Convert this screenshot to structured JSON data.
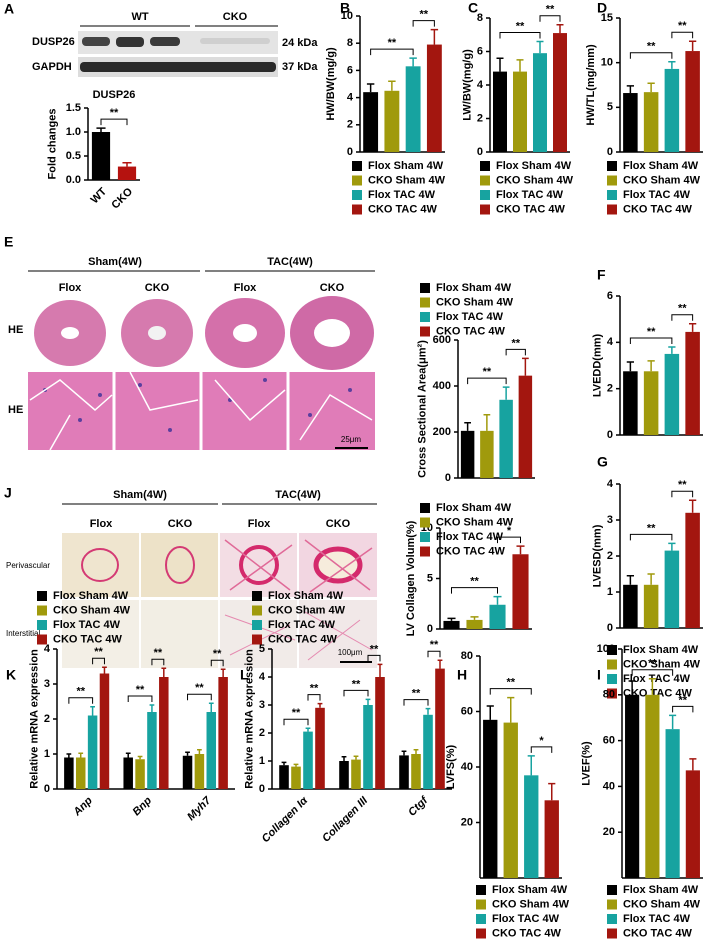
{
  "panel_letters": [
    "A",
    "B",
    "C",
    "D",
    "E",
    "F",
    "J",
    "G",
    "K",
    "L",
    "H",
    "I"
  ],
  "blot": {
    "groups": [
      "WT",
      "CKO"
    ],
    "proteins": [
      "DUSP26",
      "GAPDH"
    ],
    "sizes": [
      "24 kDa",
      "37 kDa"
    ]
  },
  "histology": [
    {
      "groups": [
        "Sham(4W)",
        "TAC(4W)"
      ],
      "columns": [
        "Flox",
        "CKO",
        "Flox",
        "CKO"
      ],
      "rows": [
        "HE",
        "HE"
      ],
      "scale": "25μm"
    },
    {
      "groups": [
        "Sham(4W)",
        "TAC(4W)"
      ],
      "columns": [
        "Flox",
        "CKO",
        "Flox",
        "CKO"
      ],
      "rows": [
        "Perivascular",
        "Interstitial"
      ],
      "scale": "100μm"
    }
  ],
  "chart_data": [
    {
      "type": "bar",
      "title": "DUSP26",
      "ylabel": "Fold changes",
      "legend": false,
      "categories": [
        "WT",
        "CKO"
      ],
      "values": [
        1.0,
        0.28
      ],
      "errors": [
        0.08,
        0.08
      ],
      "colors": [
        "#000000",
        "#b5120f"
      ],
      "ylim": [
        0,
        1.5
      ],
      "yticks": [
        {
          "value": 0,
          "label": "0.0"
        },
        {
          "value": 0.5,
          "label": "0.5"
        },
        {
          "value": 1,
          "label": "1.0"
        },
        {
          "value": 1.5,
          "label": "1.5"
        }
      ],
      "significance": [
        "**"
      ]
    },
    {
      "type": "bar",
      "ylabel": "HW/BW(mg/g)",
      "legend": true,
      "categories": [
        "Flox Sham 4W",
        "CKO Sham 4W",
        "Flox TAC 4W",
        "CKO TAC 4W"
      ],
      "values": [
        4.4,
        4.5,
        6.3,
        7.9
      ],
      "errors": [
        0.6,
        0.7,
        0.6,
        1.1
      ],
      "colors": [
        "#000000",
        "#a09a0c",
        "#17a3a0",
        "#a3160f"
      ],
      "ylim": [
        0,
        10
      ],
      "yticks": [
        0,
        2,
        4,
        6,
        8,
        10
      ],
      "significance": [
        "**",
        "**"
      ]
    },
    {
      "type": "bar",
      "ylabel": "LW/BW(mg/g)",
      "legend": true,
      "categories": [
        "Flox Sham 4W",
        "CKO Sham 4W",
        "Flox TAC 4W",
        "CKO TAC 4W"
      ],
      "values": [
        4.8,
        4.8,
        5.9,
        7.1
      ],
      "errors": [
        0.8,
        0.7,
        0.7,
        0.5
      ],
      "colors": [
        "#000000",
        "#a09a0c",
        "#17a3a0",
        "#a3160f"
      ],
      "ylim": [
        0,
        8
      ],
      "yticks": [
        0,
        2,
        4,
        6,
        8
      ],
      "significance": [
        "**",
        "**"
      ]
    },
    {
      "type": "bar",
      "ylabel": "HW/TL(mg/mm)",
      "legend": true,
      "categories": [
        "Flox Sham 4W",
        "CKO Sham 4W",
        "Flox TAC 4W",
        "CKO TAC 4W"
      ],
      "values": [
        6.6,
        6.7,
        9.3,
        11.3
      ],
      "errors": [
        0.8,
        1.0,
        0.8,
        1.1
      ],
      "colors": [
        "#000000",
        "#a09a0c",
        "#17a3a0",
        "#a3160f"
      ],
      "ylim": [
        0,
        15
      ],
      "yticks": [
        0,
        5,
        10,
        15
      ],
      "significance": [
        "**",
        "**"
      ]
    },
    {
      "type": "bar",
      "ylabel": "Cross Sectional Area(μm²)",
      "legend": true,
      "categories": [
        "Flox Sham 4W",
        "CKO Sham 4W",
        "Flox TAC 4W",
        "CKO TAC 4W"
      ],
      "values": [
        205,
        205,
        340,
        445
      ],
      "errors": [
        35,
        70,
        55,
        75
      ],
      "colors": [
        "#000000",
        "#a09a0c",
        "#17a3a0",
        "#a3160f"
      ],
      "ylim": [
        0,
        600
      ],
      "yticks": [
        0,
        200,
        400,
        600
      ],
      "significance": [
        "**",
        "**"
      ]
    },
    {
      "type": "bar",
      "ylabel": "LVEDD(mm)",
      "legend": false,
      "values": [
        2.75,
        2.75,
        3.5,
        4.45
      ],
      "errors": [
        0.4,
        0.45,
        0.3,
        0.35
      ],
      "colors": [
        "#000000",
        "#a09a0c",
        "#17a3a0",
        "#a3160f"
      ],
      "ylim": [
        0,
        6
      ],
      "yticks": [
        0,
        2,
        4,
        6
      ],
      "significance": [
        "**",
        "**"
      ]
    },
    {
      "type": "bar",
      "ylabel": "LV  Collagen Volum(%)",
      "legend": true,
      "categories": [
        "Flox Sham 4W",
        "CKO Sham 4W",
        "Flox TAC 4W",
        "CKO TAC 4W"
      ],
      "values": [
        0.8,
        0.9,
        2.4,
        7.4
      ],
      "errors": [
        0.25,
        0.3,
        0.8,
        0.8
      ],
      "colors": [
        "#000000",
        "#a09a0c",
        "#17a3a0",
        "#a3160f"
      ],
      "ylim": [
        0,
        10
      ],
      "yticks": [
        0,
        5,
        10
      ],
      "significance": [
        "**",
        "*"
      ]
    },
    {
      "type": "bar",
      "ylabel": "LVESD(mm)",
      "legend": true,
      "categories": [
        "Flox Sham 4W",
        "CKO Sham 4W",
        "Flox TAC 4W",
        "CKO TAC 4W"
      ],
      "values": [
        1.2,
        1.2,
        2.15,
        3.2
      ],
      "errors": [
        0.25,
        0.3,
        0.2,
        0.35
      ],
      "colors": [
        "#000000",
        "#a09a0c",
        "#17a3a0",
        "#a3160f"
      ],
      "ylim": [
        0,
        4
      ],
      "yticks": [
        0,
        1,
        2,
        3,
        4
      ],
      "significance": [
        "**",
        "**"
      ]
    },
    {
      "type": "bar",
      "ylabel": "Relative mRNA expression",
      "categories": [
        "Anp",
        "Bnp",
        "Myh7"
      ],
      "series": [
        {
          "name": "Flox Sham 4W",
          "color": "#000000",
          "values": [
            0.9,
            0.9,
            0.95
          ],
          "errors": [
            0.1,
            0.12,
            0.1
          ]
        },
        {
          "name": "CKO Sham 4W",
          "color": "#a09a0c",
          "values": [
            0.9,
            0.85,
            1.0
          ],
          "errors": [
            0.12,
            0.08,
            0.12
          ]
        },
        {
          "name": "Flox TAC 4W",
          "color": "#17a3a0",
          "values": [
            2.1,
            2.2,
            2.2
          ],
          "errors": [
            0.25,
            0.2,
            0.25
          ]
        },
        {
          "name": "CKO TAC 4W",
          "color": "#a3160f",
          "values": [
            3.3,
            3.2,
            3.2
          ],
          "errors": [
            0.18,
            0.25,
            0.22
          ]
        }
      ],
      "ylim": [
        0,
        4
      ],
      "yticks": [
        0,
        1,
        2,
        3,
        4
      ],
      "significance": [
        "**",
        "**",
        "**",
        "**",
        "**",
        "**"
      ]
    },
    {
      "type": "bar",
      "ylabel": "Relative mRNA expression",
      "categories": [
        "Collagen Iα",
        "Collagen III",
        "Ctgf"
      ],
      "series": [
        {
          "name": "Flox Sham 4W",
          "color": "#000000",
          "values": [
            0.85,
            1.0,
            1.2
          ],
          "errors": [
            0.1,
            0.15,
            0.15
          ]
        },
        {
          "name": "CKO Sham 4W",
          "color": "#a09a0c",
          "values": [
            0.8,
            1.05,
            1.25
          ],
          "errors": [
            0.08,
            0.12,
            0.15
          ]
        },
        {
          "name": "Flox TAC 4W",
          "color": "#17a3a0",
          "values": [
            2.05,
            3.0,
            2.65
          ],
          "errors": [
            0.12,
            0.2,
            0.22
          ]
        },
        {
          "name": "CKO TAC 4W",
          "color": "#a3160f",
          "values": [
            2.9,
            4.0,
            4.3
          ],
          "errors": [
            0.15,
            0.45,
            0.3
          ]
        }
      ],
      "ylim": [
        0,
        5
      ],
      "yticks": [
        0,
        1,
        2,
        3,
        4,
        5
      ],
      "significance": [
        "**",
        "**",
        "**",
        "**",
        "**",
        "**"
      ]
    },
    {
      "type": "bar",
      "ylabel": "LVFS(%)",
      "legend": true,
      "categories": [
        "Flox Sham 4W",
        "CKO Sham 4W",
        "Flox TAC 4W",
        "CKO TAC 4W"
      ],
      "values": [
        57,
        56,
        37,
        28
      ],
      "errors": [
        5,
        9,
        7,
        6
      ],
      "colors": [
        "#000000",
        "#a09a0c",
        "#17a3a0",
        "#a3160f"
      ],
      "ylim": [
        0,
        80
      ],
      "yticks": [
        20,
        40,
        60,
        80
      ],
      "significance": [
        "**",
        "*"
      ]
    },
    {
      "type": "bar",
      "ylabel": "LVEF(%)",
      "legend": true,
      "categories": [
        "Flox Sham 4W",
        "CKO Sham 4W",
        "Flox TAC 4W",
        "CKO TAC 4W"
      ],
      "values": [
        80,
        80,
        65,
        47
      ],
      "errors": [
        6,
        7,
        6,
        5
      ],
      "colors": [
        "#000000",
        "#a09a0c",
        "#17a3a0",
        "#a3160f"
      ],
      "ylim": [
        0,
        100
      ],
      "yticks": [
        20,
        40,
        60,
        80,
        100
      ],
      "significance": [
        "**",
        "**"
      ]
    }
  ]
}
